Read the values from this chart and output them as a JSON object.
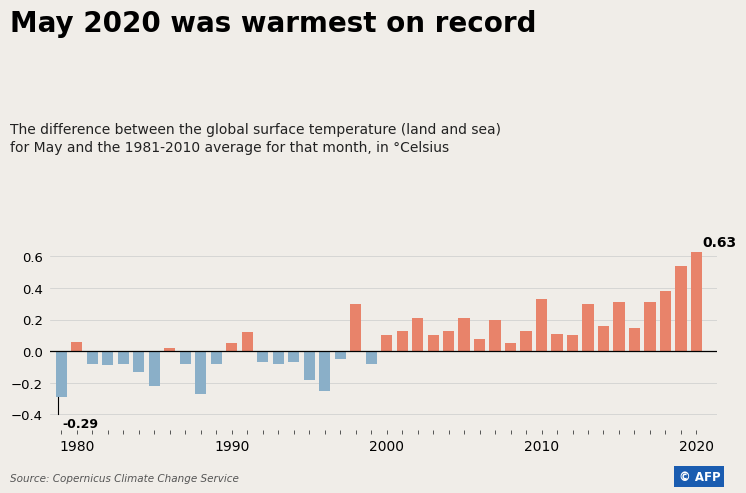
{
  "title": "May 2020 was warmest on record",
  "subtitle": "The difference between the global surface temperature (land and sea)\nfor May and the 1981-2010 average for that month, in °Celsius",
  "source": "Source: Copernicus Climate Change Service",
  "years": [
    1979,
    1980,
    1981,
    1982,
    1983,
    1984,
    1985,
    1986,
    1987,
    1988,
    1989,
    1990,
    1991,
    1992,
    1993,
    1994,
    1995,
    1996,
    1997,
    1998,
    1999,
    2000,
    2001,
    2002,
    2003,
    2004,
    2005,
    2006,
    2007,
    2008,
    2009,
    2010,
    2011,
    2012,
    2013,
    2014,
    2015,
    2016,
    2017,
    2018,
    2019,
    2020
  ],
  "values": [
    -0.29,
    0.06,
    -0.08,
    -0.09,
    -0.08,
    -0.13,
    -0.22,
    0.02,
    -0.08,
    -0.27,
    -0.08,
    0.05,
    0.12,
    -0.07,
    -0.08,
    -0.07,
    -0.18,
    -0.25,
    -0.05,
    0.3,
    -0.08,
    0.1,
    0.13,
    0.21,
    0.1,
    0.13,
    0.21,
    0.08,
    0.2,
    0.05,
    0.13,
    0.33,
    0.11,
    0.1,
    0.3,
    0.16,
    0.31,
    0.15,
    0.31,
    0.38,
    0.54,
    0.63
  ],
  "color_positive": "#e8836a",
  "color_negative": "#8aafc8",
  "title_fontsize": 20,
  "subtitle_fontsize": 10,
  "annotation_min": "-0.29",
  "annotation_max": "0.63",
  "ylim": [
    -0.5,
    0.78
  ],
  "yticks": [
    -0.4,
    -0.2,
    0.0,
    0.2,
    0.4,
    0.6
  ],
  "background_color": "#f0ede8"
}
